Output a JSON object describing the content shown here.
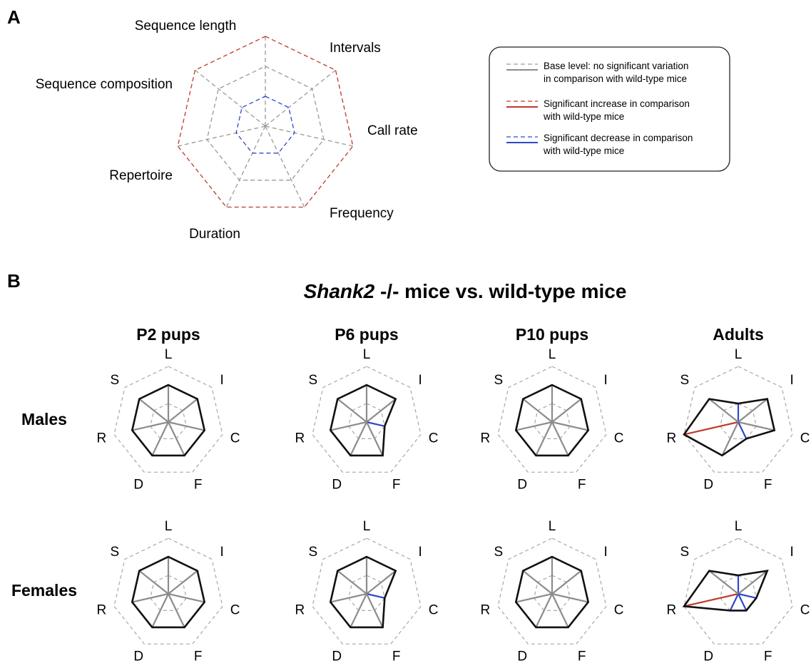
{
  "colors": {
    "grid": "#9a9a9a",
    "base": "#8c8c8c",
    "increase": "#c0392b",
    "decrease": "#3047c8",
    "outline": "#111111"
  },
  "panel_a": {
    "letter": "A",
    "axes": [
      "Sequence length",
      "Intervals",
      "Call rate",
      "Frequency",
      "Duration",
      "Repertoire",
      "Sequence composition"
    ]
  },
  "legend": {
    "items": [
      {
        "kind": "base",
        "line1": "Base level: no significant variation",
        "line2": "in comparison with wild-type mice"
      },
      {
        "kind": "increase",
        "line1": "Significant increase in comparison",
        "line2": "with wild-type mice"
      },
      {
        "kind": "decrease",
        "line1": "Significant decrease in comparison",
        "line2": "with wild-type mice"
      }
    ]
  },
  "panel_b": {
    "letter": "B",
    "title_italic": "Shank2",
    "title_rest": " -/- mice vs. wild-type mice",
    "axis_letters": [
      "L",
      "I",
      "C",
      "F",
      "D",
      "R",
      "S"
    ],
    "columns": [
      "P2 pups",
      "P6 pups",
      "P10 pups",
      "Adults"
    ],
    "rows": [
      "Males",
      "Females"
    ]
  },
  "chart_data": {
    "type": "radar",
    "axes": [
      "L",
      "I",
      "C",
      "F",
      "D",
      "R",
      "S"
    ],
    "levels": {
      "decrease": 1,
      "base": 2,
      "increase": 3
    },
    "panels": [
      {
        "row": "Males",
        "column": "P2 pups",
        "values": [
          "base",
          "base",
          "base",
          "base",
          "base",
          "base",
          "base"
        ]
      },
      {
        "row": "Males",
        "column": "P6 pups",
        "values": [
          "base",
          "base",
          "decrease",
          "base",
          "base",
          "base",
          "base"
        ]
      },
      {
        "row": "Males",
        "column": "P10 pups",
        "values": [
          "base",
          "base",
          "base",
          "base",
          "base",
          "base",
          "base"
        ]
      },
      {
        "row": "Males",
        "column": "Adults",
        "values": [
          "decrease",
          "base",
          "base",
          "decrease",
          "base",
          "increase",
          "base"
        ]
      },
      {
        "row": "Females",
        "column": "P2 pups",
        "values": [
          "base",
          "base",
          "base",
          "base",
          "base",
          "base",
          "base"
        ]
      },
      {
        "row": "Females",
        "column": "P6 pups",
        "values": [
          "base",
          "base",
          "decrease",
          "base",
          "base",
          "base",
          "base"
        ]
      },
      {
        "row": "Females",
        "column": "P10 pups",
        "values": [
          "base",
          "base",
          "base",
          "base",
          "base",
          "base",
          "base"
        ]
      },
      {
        "row": "Females",
        "column": "Adults",
        "values": [
          "decrease",
          "base",
          "decrease",
          "decrease",
          "decrease",
          "increase",
          "base"
        ]
      }
    ]
  }
}
